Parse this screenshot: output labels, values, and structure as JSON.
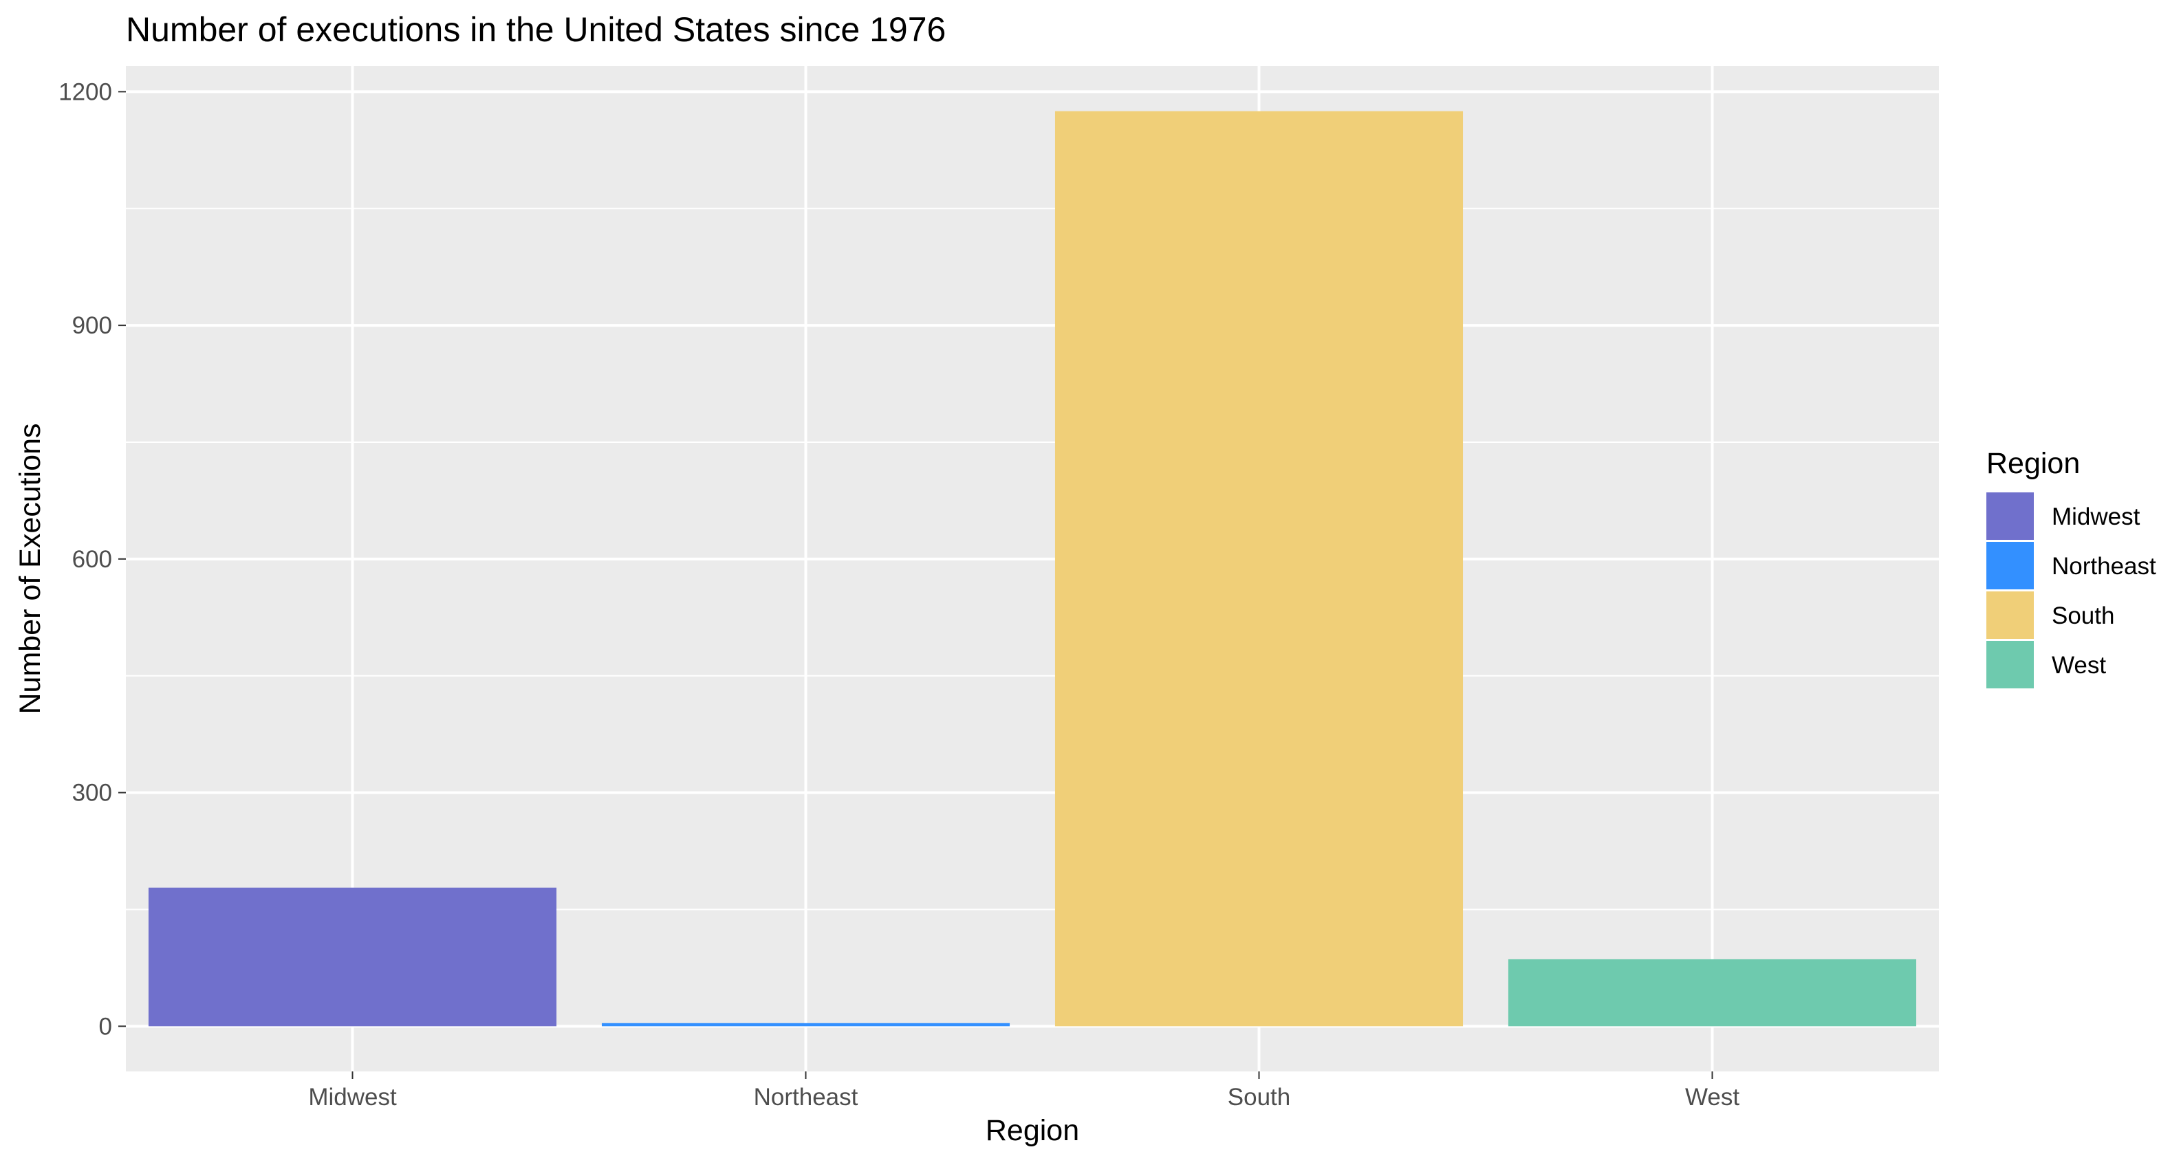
{
  "chart_data": {
    "type": "bar",
    "title": "Number of executions in the United States since 1976",
    "xlabel": "Region",
    "ylabel": "Number of Executions",
    "categories": [
      "Midwest",
      "Northeast",
      "South",
      "West"
    ],
    "values": [
      178,
      4,
      1175,
      86
    ],
    "colors": [
      "#7070cc",
      "#3390ff",
      "#f0cf78",
      "#6ecaae"
    ],
    "yticks": [
      0,
      300,
      600,
      900,
      1200
    ],
    "ylim": [
      -58,
      1233
    ],
    "grid": true,
    "panel_background": "#ebebeb",
    "legend": {
      "title": "Region",
      "position": "right",
      "entries": [
        "Midwest",
        "Northeast",
        "South",
        "West"
      ]
    }
  }
}
